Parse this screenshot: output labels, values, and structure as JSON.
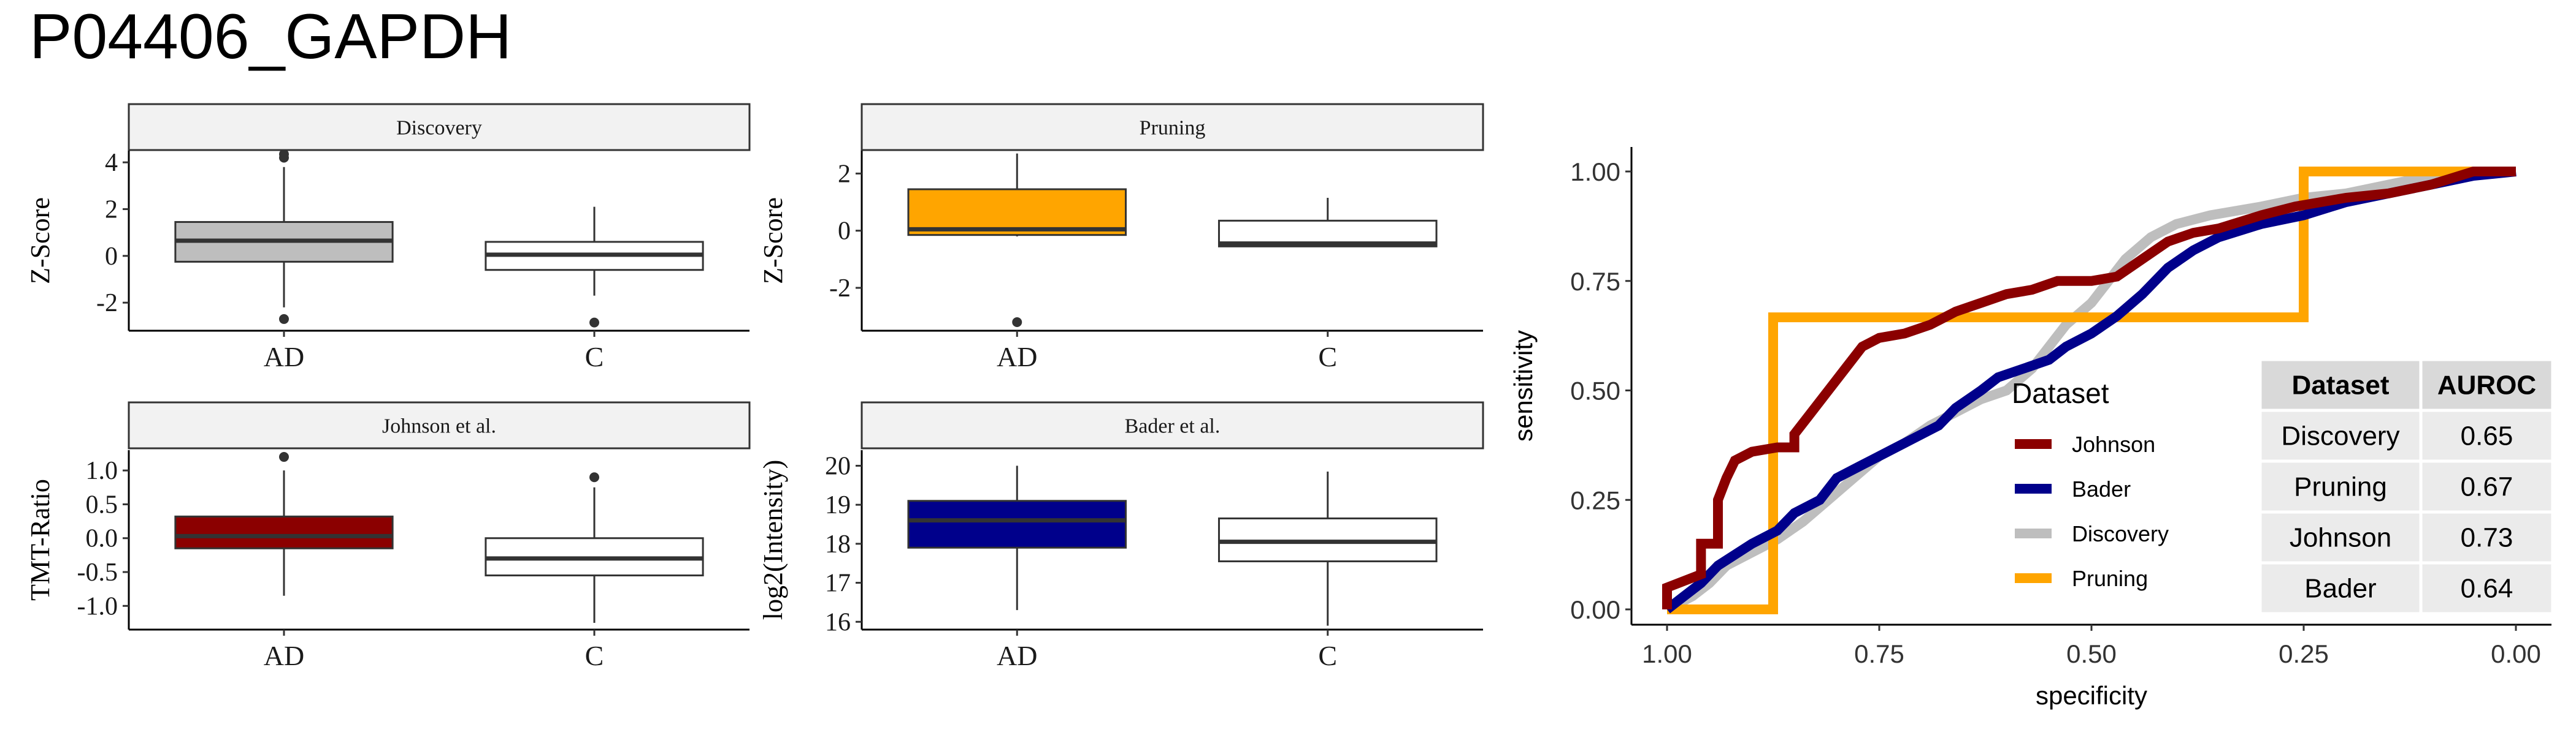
{
  "figure_title": "P04406_GAPDH",
  "colors": {
    "Discovery": "#bebebe",
    "Pruning": "#ffa500",
    "Johnson": "#8b0000",
    "Bader": "#00008b",
    "control_box": "#ffffff",
    "strip_bg": "#f2f2f2",
    "table_header_bg": "#d9d9d9",
    "table_row_bg": "#ebebeb"
  },
  "chart_data": [
    {
      "type": "box",
      "title": "Discovery",
      "ylabel": "Z-Score",
      "categories": [
        "AD",
        "C"
      ],
      "ylim": [
        -3.2,
        4.5
      ],
      "yticks": [
        -2,
        0,
        2,
        4
      ],
      "ytick_labels": [
        "-2",
        "0",
        "2",
        "4"
      ],
      "boxes": [
        {
          "category": "AD",
          "whisker_low": -2.2,
          "q1": -0.25,
          "median": 0.65,
          "q3": 1.45,
          "whisker_high": 3.8,
          "outliers": [
            4.2,
            4.35,
            -2.7
          ],
          "fill": "Discovery"
        },
        {
          "category": "C",
          "whisker_low": -1.7,
          "q1": -0.6,
          "median": 0.05,
          "q3": 0.6,
          "whisker_high": 2.1,
          "outliers": [
            -2.85
          ],
          "fill": "control"
        }
      ]
    },
    {
      "type": "box",
      "title": "Pruning",
      "ylabel": "Z-Score",
      "categories": [
        "AD",
        "C"
      ],
      "ylim": [
        -3.5,
        2.8
      ],
      "yticks": [
        -2,
        0,
        2
      ],
      "ytick_labels": [
        "-2",
        "0",
        "2"
      ],
      "boxes": [
        {
          "category": "AD",
          "whisker_low": -0.2,
          "q1": -0.15,
          "median": 0.05,
          "q3": 1.45,
          "whisker_high": 2.7,
          "outliers": [
            -3.2
          ],
          "fill": "Pruning"
        },
        {
          "category": "C",
          "whisker_low": -0.55,
          "q1": -0.55,
          "median": -0.45,
          "q3": 0.35,
          "whisker_high": 1.15,
          "outliers": [],
          "fill": "control"
        }
      ]
    },
    {
      "type": "box",
      "title": "Johnson et al.",
      "ylabel": "TMT-Ratio",
      "categories": [
        "AD",
        "C"
      ],
      "ylim": [
        -1.35,
        1.3
      ],
      "yticks": [
        -1.0,
        -0.5,
        0.0,
        0.5,
        1.0
      ],
      "ytick_labels": [
        "-1.0",
        "-0.5",
        "0.0",
        "0.5",
        "1.0"
      ],
      "boxes": [
        {
          "category": "AD",
          "whisker_low": -0.85,
          "q1": -0.15,
          "median": 0.03,
          "q3": 0.32,
          "whisker_high": 1.0,
          "outliers": [
            1.2
          ],
          "fill": "Johnson"
        },
        {
          "category": "C",
          "whisker_low": -1.25,
          "q1": -0.55,
          "median": -0.3,
          "q3": 0.0,
          "whisker_high": 0.75,
          "outliers": [
            0.9
          ],
          "fill": "control"
        }
      ]
    },
    {
      "type": "box",
      "title": "Bader et al.",
      "ylabel": "log2(Intensity)",
      "categories": [
        "AD",
        "C"
      ],
      "ylim": [
        15.8,
        20.4
      ],
      "yticks": [
        16,
        17,
        18,
        19,
        20
      ],
      "ytick_labels": [
        "16",
        "17",
        "18",
        "19",
        "20"
      ],
      "boxes": [
        {
          "category": "AD",
          "whisker_low": 16.3,
          "q1": 17.9,
          "median": 18.6,
          "q3": 19.1,
          "whisker_high": 20.0,
          "outliers": [],
          "fill": "Bader"
        },
        {
          "category": "C",
          "whisker_low": 15.9,
          "q1": 17.55,
          "median": 18.05,
          "q3": 18.65,
          "whisker_high": 19.85,
          "outliers": [],
          "fill": "control"
        }
      ]
    },
    {
      "type": "line",
      "subtype": "roc",
      "xlabel": "specificity",
      "ylabel": "sensitivity",
      "xlim": [
        1.0,
        0.0
      ],
      "ylim": [
        0.0,
        1.0
      ],
      "xticks": [
        1.0,
        0.75,
        0.5,
        0.25,
        0.0
      ],
      "xtick_labels": [
        "1.00",
        "0.75",
        "0.50",
        "0.25",
        "0.00"
      ],
      "yticks": [
        0.0,
        0.25,
        0.5,
        0.75,
        1.0
      ],
      "ytick_labels": [
        "0.00",
        "0.25",
        "0.50",
        "0.75",
        "1.00"
      ],
      "legend": {
        "title": "Dataset",
        "position": "inside-bottom-center",
        "entries": [
          "Johnson",
          "Bader",
          "Discovery",
          "Pruning"
        ]
      },
      "series": [
        {
          "name": "Johnson",
          "color_key": "Johnson",
          "points": [
            [
              1.0,
              0.0
            ],
            [
              1.0,
              0.05
            ],
            [
              0.96,
              0.08
            ],
            [
              0.96,
              0.15
            ],
            [
              0.94,
              0.15
            ],
            [
              0.94,
              0.25
            ],
            [
              0.93,
              0.3
            ],
            [
              0.92,
              0.34
            ],
            [
              0.9,
              0.36
            ],
            [
              0.87,
              0.37
            ],
            [
              0.85,
              0.37
            ],
            [
              0.85,
              0.4
            ],
            [
              0.83,
              0.45
            ],
            [
              0.81,
              0.5
            ],
            [
              0.79,
              0.55
            ],
            [
              0.77,
              0.6
            ],
            [
              0.75,
              0.62
            ],
            [
              0.72,
              0.63
            ],
            [
              0.69,
              0.65
            ],
            [
              0.66,
              0.68
            ],
            [
              0.63,
              0.7
            ],
            [
              0.6,
              0.72
            ],
            [
              0.57,
              0.73
            ],
            [
              0.54,
              0.75
            ],
            [
              0.5,
              0.75
            ],
            [
              0.47,
              0.76
            ],
            [
              0.44,
              0.8
            ],
            [
              0.41,
              0.84
            ],
            [
              0.38,
              0.86
            ],
            [
              0.35,
              0.87
            ],
            [
              0.3,
              0.9
            ],
            [
              0.26,
              0.92
            ],
            [
              0.2,
              0.94
            ],
            [
              0.15,
              0.95
            ],
            [
              0.1,
              0.97
            ],
            [
              0.05,
              1.0
            ],
            [
              0.0,
              1.0
            ]
          ]
        },
        {
          "name": "Bader",
          "color_key": "Bader",
          "points": [
            [
              1.0,
              0.0
            ],
            [
              0.98,
              0.03
            ],
            [
              0.96,
              0.06
            ],
            [
              0.94,
              0.1
            ],
            [
              0.9,
              0.15
            ],
            [
              0.87,
              0.18
            ],
            [
              0.85,
              0.22
            ],
            [
              0.82,
              0.25
            ],
            [
              0.8,
              0.3
            ],
            [
              0.77,
              0.33
            ],
            [
              0.74,
              0.36
            ],
            [
              0.71,
              0.39
            ],
            [
              0.68,
              0.42
            ],
            [
              0.66,
              0.46
            ],
            [
              0.63,
              0.5
            ],
            [
              0.61,
              0.53
            ],
            [
              0.58,
              0.55
            ],
            [
              0.55,
              0.57
            ],
            [
              0.53,
              0.6
            ],
            [
              0.5,
              0.63
            ],
            [
              0.47,
              0.67
            ],
            [
              0.44,
              0.72
            ],
            [
              0.41,
              0.78
            ],
            [
              0.38,
              0.82
            ],
            [
              0.35,
              0.85
            ],
            [
              0.3,
              0.88
            ],
            [
              0.25,
              0.9
            ],
            [
              0.2,
              0.93
            ],
            [
              0.15,
              0.95
            ],
            [
              0.1,
              0.97
            ],
            [
              0.05,
              0.99
            ],
            [
              0.0,
              1.0
            ]
          ]
        },
        {
          "name": "Discovery",
          "color_key": "Discovery",
          "points": [
            [
              1.0,
              0.0
            ],
            [
              0.97,
              0.03
            ],
            [
              0.95,
              0.06
            ],
            [
              0.93,
              0.1
            ],
            [
              0.9,
              0.13
            ],
            [
              0.87,
              0.16
            ],
            [
              0.84,
              0.2
            ],
            [
              0.81,
              0.25
            ],
            [
              0.78,
              0.3
            ],
            [
              0.75,
              0.35
            ],
            [
              0.72,
              0.38
            ],
            [
              0.69,
              0.42
            ],
            [
              0.66,
              0.45
            ],
            [
              0.63,
              0.48
            ],
            [
              0.6,
              0.5
            ],
            [
              0.57,
              0.55
            ],
            [
              0.55,
              0.6
            ],
            [
              0.53,
              0.65
            ],
            [
              0.5,
              0.7
            ],
            [
              0.48,
              0.75
            ],
            [
              0.46,
              0.8
            ],
            [
              0.43,
              0.85
            ],
            [
              0.4,
              0.88
            ],
            [
              0.36,
              0.9
            ],
            [
              0.3,
              0.92
            ],
            [
              0.25,
              0.94
            ],
            [
              0.2,
              0.95
            ],
            [
              0.15,
              0.97
            ],
            [
              0.1,
              0.99
            ],
            [
              0.05,
              1.0
            ],
            [
              0.0,
              1.0
            ]
          ]
        },
        {
          "name": "Pruning",
          "color_key": "Pruning",
          "points": [
            [
              1.0,
              0.0
            ],
            [
              0.875,
              0.0
            ],
            [
              0.875,
              0.667
            ],
            [
              0.25,
              0.667
            ],
            [
              0.25,
              1.0
            ],
            [
              0.0,
              1.0
            ]
          ]
        }
      ],
      "table": {
        "headers": [
          "Dataset",
          "AUROC"
        ],
        "rows": [
          [
            "Discovery",
            "0.65"
          ],
          [
            "Pruning",
            "0.67"
          ],
          [
            "Johnson",
            "0.73"
          ],
          [
            "Bader",
            "0.64"
          ]
        ]
      }
    }
  ]
}
